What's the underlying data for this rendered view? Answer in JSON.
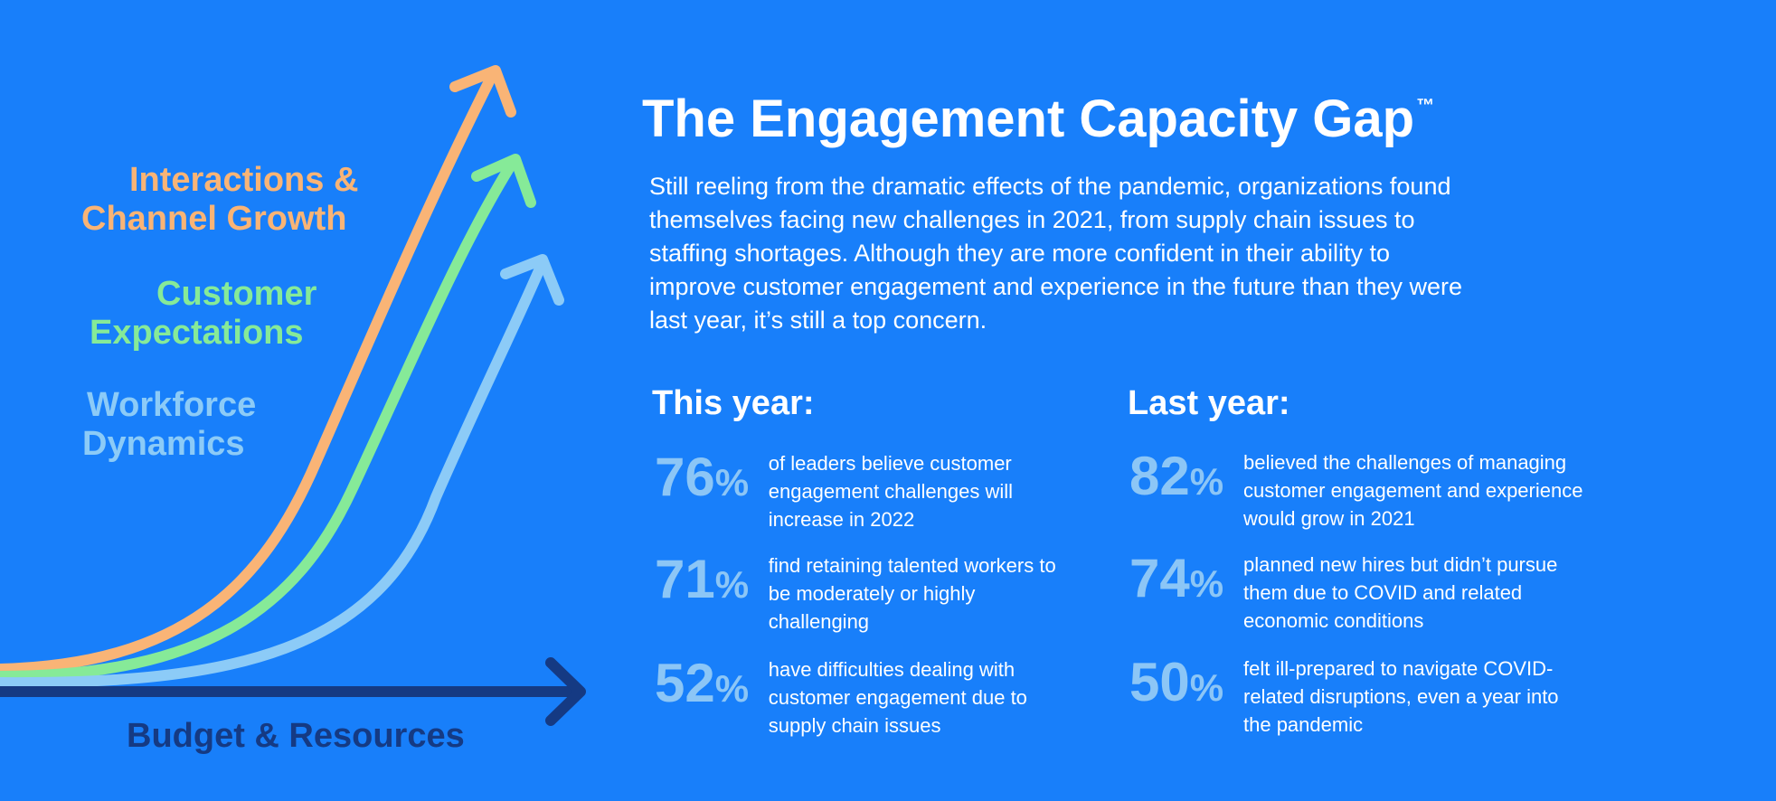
{
  "curve_labels": {
    "interactions": [
      "Interactions &",
      "Channel Growth"
    ],
    "customer": [
      "Customer",
      "Expectations"
    ],
    "workforce": [
      "Workforce",
      "Dynamics"
    ],
    "budget": "Budget & Resources"
  },
  "colors": {
    "background": "#187ffa",
    "interactions": "#f9b476",
    "customer": "#86ea98",
    "workforce": "#8ccbf7",
    "budget": "#153a83",
    "stat_number": "#8cc6f6"
  },
  "title": "The Engagement Capacity Gap",
  "title_mark": "™",
  "intro": "Still reeling from the dramatic effects of the pandemic, organizations found themselves facing new challenges in 2021, from supply chain issues to staffing shortages. Although they are more confident in their ability to improve customer engagement and experience in the future than they were last year, it’s still a top concern.",
  "this_year": {
    "heading": "This year:",
    "stats": [
      {
        "value": "76",
        "unit": "%",
        "text": "of leaders believe customer engagement challenges will increase in 2022"
      },
      {
        "value": "71",
        "unit": "%",
        "text": "find retaining talented workers to be moderately or highly challenging"
      },
      {
        "value": "52",
        "unit": "%",
        "text": "have difficulties dealing with customer engagement due to supply chain issues"
      }
    ]
  },
  "last_year": {
    "heading": "Last year:",
    "stats": [
      {
        "value": "82",
        "unit": "%",
        "text": "believed the challenges of managing customer engagement and experience would grow in 2021"
      },
      {
        "value": "74",
        "unit": "%",
        "text": "planned new hires but didn’t pursue them due to COVID and related economic conditions"
      },
      {
        "value": "50",
        "unit": "%",
        "text": "felt ill-prepared to navigate COVID-related disruptions, even a year into the pandemic"
      }
    ]
  }
}
